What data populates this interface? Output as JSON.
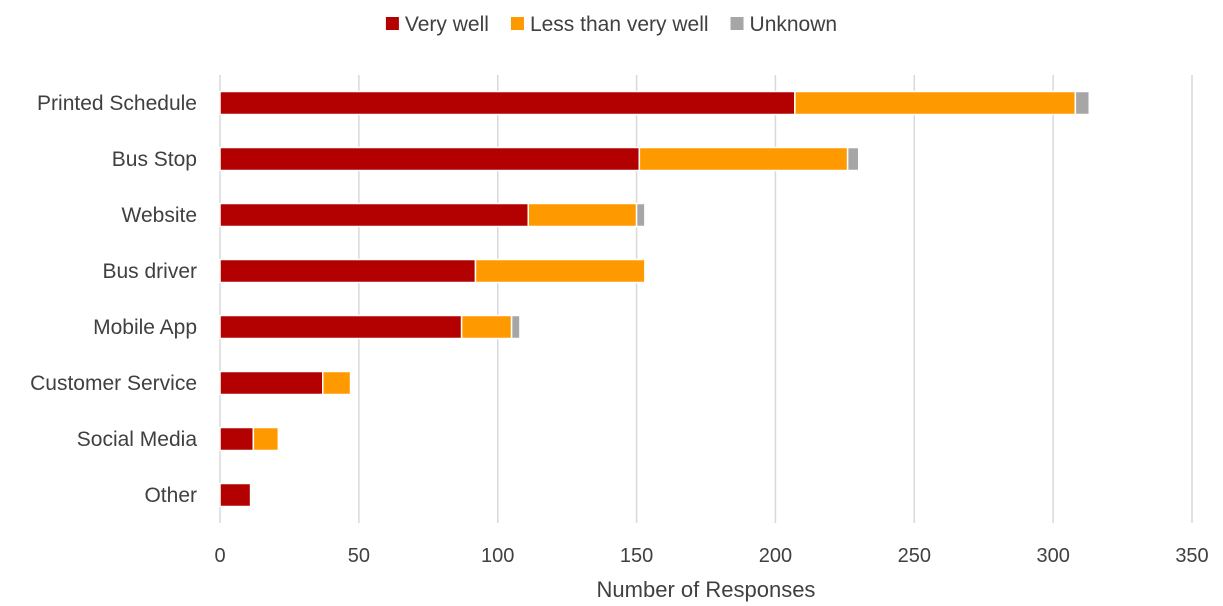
{
  "chart_data": {
    "type": "bar",
    "orientation": "horizontal",
    "stacked": true,
    "categories": [
      "Printed Schedule",
      "Bus Stop",
      "Website",
      "Bus driver",
      "Mobile App",
      "Customer Service",
      "Social Media",
      "Other"
    ],
    "series": [
      {
        "name": "Very well",
        "color": "#b30000",
        "values": [
          207,
          151,
          111,
          92,
          87,
          37,
          12,
          11
        ]
      },
      {
        "name": "Less than very well",
        "color": "#ff9900",
        "values": [
          101,
          75,
          39,
          61,
          18,
          10,
          9,
          0
        ]
      },
      {
        "name": "Unknown",
        "color": "#a6a6a6",
        "values": [
          5,
          4,
          3,
          0,
          3,
          0,
          0,
          0
        ]
      }
    ],
    "title": "",
    "xlabel": "Number of Responses",
    "ylabel": "",
    "xlim": [
      0,
      350
    ],
    "xticks": [
      "0",
      "50",
      "100",
      "150",
      "200",
      "250",
      "300",
      "350"
    ],
    "grid": "vertical",
    "legend_position": "top"
  }
}
